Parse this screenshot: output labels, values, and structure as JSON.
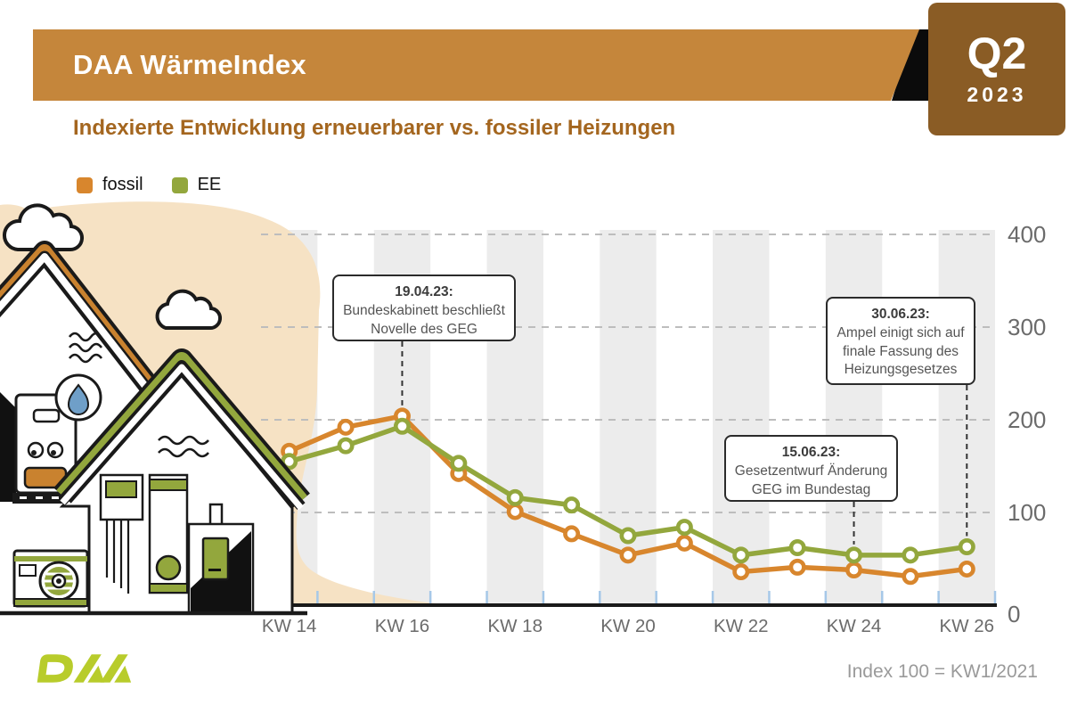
{
  "header": {
    "title": "DAA WärmeIndex",
    "subtitle": "Indexierte Entwicklung erneuerbarer vs. fossiler Heizungen",
    "quarter": "Q2",
    "year": "2023"
  },
  "colors": {
    "banner": "#c5863b",
    "badge": "#8a5c25",
    "fossil": "#d8862d",
    "ee": "#93a73d",
    "logo_green": "#b8cc2b",
    "beige": "#f6e2c4",
    "stripe": "#ececec",
    "gridline": "#bdbdbd",
    "axis_text": "#6b6b6b",
    "tick_blue": "#a6c8e8"
  },
  "legend": {
    "items": [
      {
        "label": "fossil",
        "color": "#d8862d"
      },
      {
        "label": "EE",
        "color": "#93a73d"
      }
    ]
  },
  "chart_data": {
    "type": "line",
    "x_unit": "Kalenderwoche",
    "x_weeks": [
      14,
      15,
      16,
      17,
      18,
      19,
      20,
      21,
      22,
      23,
      24,
      25,
      26
    ],
    "x_tick_labels": [
      "KW 14",
      "KW 16",
      "KW 18",
      "KW 20",
      "KW 22",
      "KW 24",
      "KW 26"
    ],
    "ylim": [
      0,
      400
    ],
    "y_ticks": [
      0,
      100,
      200,
      300,
      400
    ],
    "grid": "horizontal dashed gridlines; alternating grey vertical week bands",
    "legend_position": "top-left",
    "series": [
      {
        "name": "fossil",
        "color": "#d8862d",
        "values": [
          166,
          192,
          204,
          142,
          101,
          77,
          54,
          67,
          36,
          41,
          38,
          31,
          39
        ]
      },
      {
        "name": "EE",
        "color": "#93a73d",
        "values": [
          155,
          172,
          193,
          153,
          116,
          108,
          75,
          84,
          54,
          62,
          54,
          54,
          63
        ]
      }
    ],
    "annotations": [
      {
        "date": "19.04.23:",
        "lines": [
          "Bundeskabinett beschließt",
          "Novelle des GEG"
        ],
        "week": 16
      },
      {
        "date": "15.06.23:",
        "lines": [
          "Gesetzentwurf Änderung",
          "GEG im Bundestag"
        ],
        "week": 24
      },
      {
        "date": "30.06.23:",
        "lines": [
          "Ampel einigt sich auf",
          "finale Fassung des",
          "Heizungsgesetzes"
        ],
        "week": 26
      }
    ]
  },
  "footer": {
    "logo": "DAA",
    "note": "Index 100 = KW1/2021"
  }
}
